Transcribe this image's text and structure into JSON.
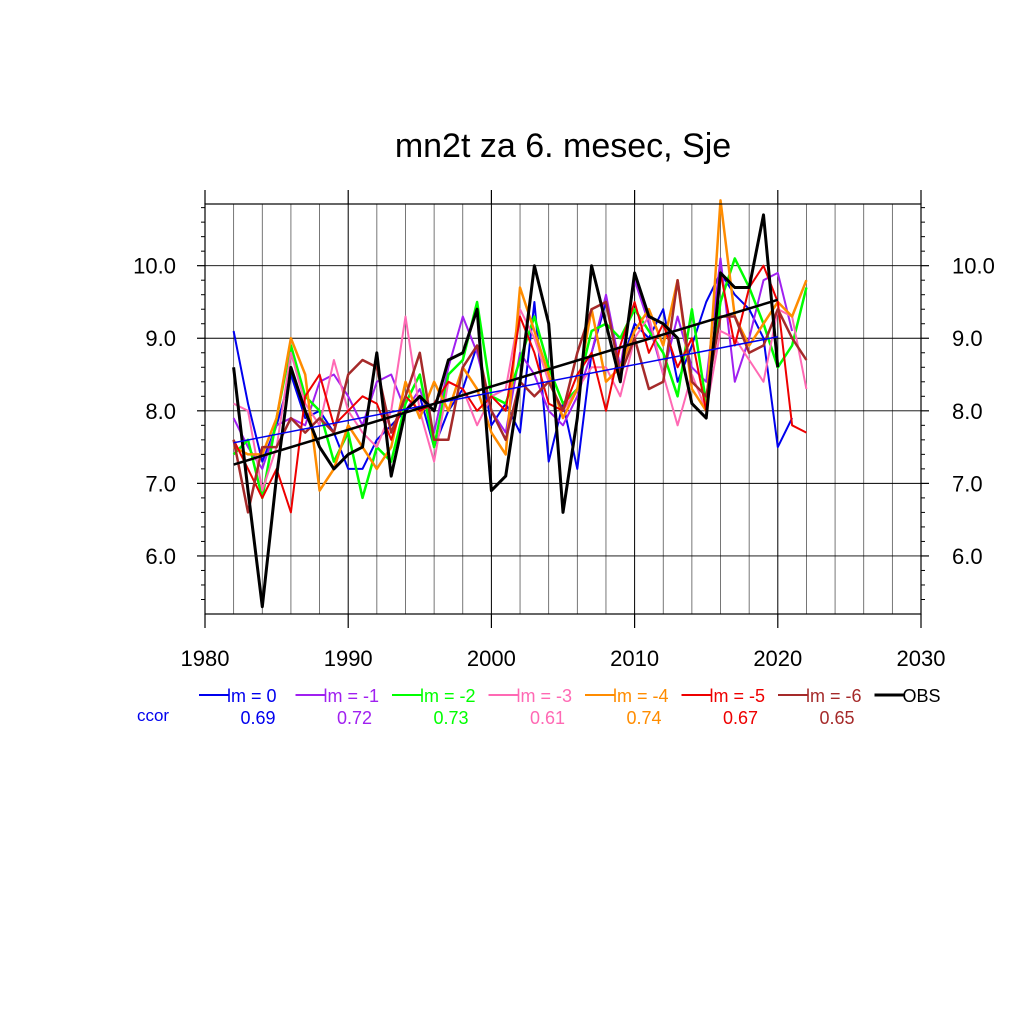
{
  "chart_data": {
    "type": "line",
    "title": "mn2t za 6. mesec, Sje",
    "xlabel": "",
    "ylabel": "",
    "xlim": [
      1980,
      2030
    ],
    "ylim": [
      5.2,
      10.85
    ],
    "xticks": [
      1980,
      1990,
      2000,
      2010,
      2020,
      2030
    ],
    "xtick_labels": [
      "1980",
      "1990",
      "2000",
      "2010",
      "2020",
      "2030"
    ],
    "yticks": [
      6.0,
      7.0,
      8.0,
      9.0,
      10.0
    ],
    "ytick_labels": [
      "6.0",
      "7.0",
      "8.0",
      "9.0",
      "10.0"
    ],
    "grid": true,
    "legend_position": "bottom",
    "ccor_label": "ccor",
    "x": [
      1982,
      1983,
      1984,
      1985,
      1986,
      1987,
      1988,
      1989,
      1990,
      1991,
      1992,
      1993,
      1994,
      1995,
      1996,
      1997,
      1998,
      1999,
      2000,
      2001,
      2002,
      2003,
      2004,
      2005,
      2006,
      2007,
      2008,
      2009,
      2010,
      2011,
      2012,
      2013,
      2014,
      2015,
      2016,
      2017,
      2018,
      2019,
      2020,
      2021,
      2022
    ],
    "series": [
      {
        "name": "lm = 0",
        "ccor": "0.69",
        "color": "#0000ee",
        "width": 2,
        "values": [
          9.1,
          8.1,
          7.3,
          7.8,
          8.5,
          7.9,
          8.0,
          7.7,
          7.2,
          7.2,
          7.6,
          7.8,
          8.0,
          8.2,
          7.5,
          8.0,
          8.3,
          8.9,
          7.8,
          8.1,
          7.7,
          9.5,
          7.3,
          8.1,
          7.2,
          8.8,
          9.5,
          8.6,
          9.2,
          9.0,
          9.4,
          8.4,
          8.9,
          9.5,
          9.9,
          9.6,
          9.4,
          9.0,
          7.5,
          7.9,
          null
        ],
        "trend": [
          7.56,
          9.02
        ]
      },
      {
        "name": "lm = -1",
        "ccor": "0.72",
        "color": "#a020f0",
        "width": 2,
        "values": [
          7.9,
          7.5,
          7.2,
          7.8,
          7.9,
          7.8,
          8.4,
          8.5,
          8.2,
          7.8,
          8.4,
          8.5,
          8.0,
          8.3,
          7.7,
          8.6,
          9.3,
          8.8,
          8.0,
          7.7,
          8.8,
          8.5,
          8.0,
          7.8,
          8.2,
          8.8,
          9.6,
          8.6,
          9.8,
          9.2,
          8.5,
          9.3,
          8.6,
          8.4,
          10.1,
          8.4,
          9.0,
          9.8,
          9.9,
          9.1,
          null
        ],
        "trend": null
      },
      {
        "name": "lm = -2",
        "ccor": "0.73",
        "color": "#00ff00",
        "width": 2.5,
        "values": [
          7.4,
          7.6,
          6.8,
          7.9,
          8.9,
          8.2,
          8.0,
          7.3,
          7.7,
          6.8,
          7.5,
          7.3,
          8.1,
          8.5,
          7.5,
          8.5,
          8.7,
          9.5,
          8.2,
          8.1,
          8.7,
          9.3,
          8.6,
          8.1,
          8.3,
          9.1,
          9.2,
          9.0,
          9.4,
          9.1,
          8.8,
          8.2,
          9.4,
          8.1,
          9.5,
          10.1,
          9.7,
          9.2,
          8.6,
          8.9,
          9.7
        ],
        "trend": null
      },
      {
        "name": "lm = -3",
        "ccor": "0.61",
        "color": "#ff69b4",
        "width": 2,
        "values": [
          8.1,
          8.0,
          6.9,
          7.5,
          8.8,
          8.1,
          7.8,
          8.7,
          8.0,
          7.7,
          7.5,
          8.0,
          9.3,
          8.0,
          7.3,
          8.4,
          8.3,
          7.8,
          8.2,
          8.3,
          9.4,
          9.0,
          8.4,
          8.0,
          8.3,
          8.6,
          8.6,
          8.2,
          9.0,
          9.3,
          8.5,
          7.8,
          8.5,
          8.0,
          9.1,
          9.0,
          8.7,
          8.4,
          9.4,
          9.3,
          8.3
        ],
        "trend": null
      },
      {
        "name": "lm = -4",
        "ccor": "0.74",
        "color": "#ff8c00",
        "width": 2.5,
        "values": [
          7.5,
          7.4,
          7.4,
          7.9,
          9.0,
          8.5,
          6.9,
          7.2,
          7.8,
          7.5,
          7.2,
          7.5,
          8.4,
          7.9,
          8.4,
          8.0,
          8.6,
          8.3,
          7.7,
          7.4,
          9.7,
          9.1,
          8.5,
          7.9,
          8.3,
          9.4,
          8.4,
          8.6,
          9.1,
          9.4,
          8.9,
          9.8,
          8.3,
          8.0,
          10.9,
          9.3,
          8.9,
          9.2,
          9.5,
          9.3,
          9.8
        ],
        "trend": null
      },
      {
        "name": "lm = -5",
        "ccor": "0.67",
        "color": "#ee0000",
        "width": 2,
        "values": [
          7.6,
          7.2,
          6.8,
          7.2,
          6.6,
          8.2,
          8.5,
          7.8,
          8.0,
          8.2,
          8.1,
          7.6,
          8.2,
          8.0,
          8.1,
          8.4,
          8.3,
          8.0,
          8.2,
          8.0,
          9.3,
          8.8,
          8.1,
          8.0,
          8.5,
          8.8,
          8.0,
          8.9,
          9.5,
          8.8,
          9.2,
          8.6,
          9.0,
          8.0,
          9.9,
          8.9,
          9.7,
          10.0,
          9.5,
          7.8,
          7.7
        ],
        "trend": null
      },
      {
        "name": "lm = -6",
        "ccor": "0.65",
        "color": "#a52a2a",
        "width": 2.5,
        "values": [
          7.6,
          6.6,
          7.5,
          7.5,
          7.9,
          7.7,
          7.9,
          7.7,
          8.5,
          8.7,
          8.6,
          7.7,
          8.2,
          8.8,
          7.6,
          7.6,
          8.6,
          8.9,
          8.0,
          7.6,
          8.4,
          8.2,
          8.4,
          8.0,
          8.8,
          9.4,
          9.5,
          8.5,
          9.0,
          8.3,
          8.4,
          9.8,
          8.4,
          8.2,
          9.3,
          9.3,
          8.8,
          8.9,
          9.4,
          9.0,
          8.7
        ],
        "trend": null
      },
      {
        "name": "OBS",
        "ccor": "",
        "color": "#000000",
        "width": 3,
        "values": [
          8.6,
          6.9,
          5.3,
          7.1,
          8.6,
          8.0,
          7.5,
          7.2,
          7.4,
          7.5,
          8.8,
          7.1,
          8.0,
          8.2,
          8.0,
          8.7,
          8.8,
          9.4,
          6.9,
          7.1,
          8.4,
          10.0,
          9.2,
          6.6,
          7.9,
          10.0,
          9.2,
          8.4,
          9.9,
          9.3,
          9.2,
          9.0,
          8.1,
          7.9,
          9.9,
          9.7,
          9.7,
          10.7,
          8.6,
          null,
          null
        ],
        "trend": [
          7.26,
          9.53
        ]
      }
    ]
  }
}
